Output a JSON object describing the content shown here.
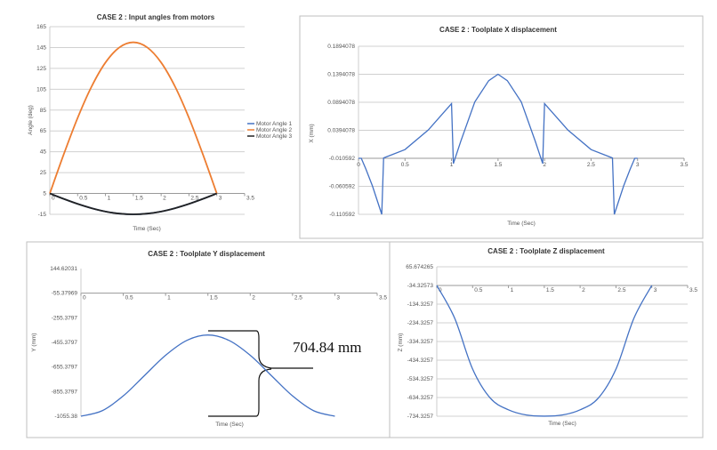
{
  "annotation": {
    "text": "704.84 mm"
  },
  "chart_data": [
    {
      "type": "line",
      "title": "CASE 2 : Input angles from motors",
      "xlabel": "Time (Sec)",
      "ylabel": "Angle (deg)",
      "xlim": [
        0,
        3.5
      ],
      "ylim": [
        -15,
        165
      ],
      "xticks": [
        0,
        0.5,
        1,
        1.5,
        2,
        2.5,
        3,
        3.5
      ],
      "yticks": [
        165,
        145,
        125,
        105,
        85,
        65,
        45,
        25,
        5,
        -15
      ],
      "xaxis_at": 5,
      "legend": "right",
      "grid": true,
      "x": [
        0,
        0.25,
        0.5,
        0.75,
        1,
        1.25,
        1.5,
        1.75,
        2,
        2.25,
        2.5,
        2.75,
        3
      ],
      "series": [
        {
          "name": "Motor Angle 1",
          "color": "#4472c4",
          "values": [
            5,
            -0.2,
            -5,
            -9.1,
            -12.3,
            -14.3,
            -15,
            -14.3,
            -12.3,
            -9.1,
            -5,
            -0.2,
            5
          ]
        },
        {
          "name": "Motor Angle 2",
          "color": "#ed7d31",
          "values": [
            5,
            42.5,
            77.5,
            107.5,
            130.6,
            145.1,
            150,
            145.1,
            130.6,
            107.5,
            77.5,
            42.5,
            5
          ]
        },
        {
          "name": "Motor Angle 3",
          "color": "#222222",
          "values": [
            5,
            -0.2,
            -5,
            -9.1,
            -12.3,
            -14.3,
            -15,
            -14.3,
            -12.3,
            -9.1,
            -5,
            -0.2,
            5
          ]
        }
      ]
    },
    {
      "type": "line",
      "title": "CASE 2 : Toolplate X displacement",
      "xlabel": "Time (Sec)",
      "ylabel": "X (mm)",
      "xlim": [
        0,
        3.5
      ],
      "ylim": [
        -0.110592,
        0.1894078
      ],
      "xticks": [
        0,
        0.5,
        1,
        1.5,
        2,
        2.5,
        3,
        3.5
      ],
      "yticks": [
        "0.1894078",
        "0.1394078",
        "0.0894078",
        "0.0394078",
        "-0.010592",
        "-0.060592",
        "-0.110592"
      ],
      "xaxis_at": -0.010592,
      "grid": true,
      "x": [
        0,
        0.03,
        0.08,
        0.15,
        0.25,
        0.27,
        0.5,
        0.75,
        1.0,
        1.02,
        1.1,
        1.25,
        1.4,
        1.5,
        1.6,
        1.75,
        1.9,
        1.98,
        2.0,
        2.25,
        2.5,
        2.73,
        2.75,
        2.85,
        2.92,
        2.97,
        3.0
      ],
      "series": [
        {
          "name": "X",
          "color": "#4472c4",
          "values": [
            -0.0106,
            -0.0106,
            -0.03,
            -0.06,
            -0.1106,
            -0.01,
            0.005,
            0.04,
            0.087,
            -0.02,
            0.02,
            0.09,
            0.128,
            0.1394,
            0.128,
            0.09,
            0.02,
            -0.02,
            0.087,
            0.04,
            0.005,
            -0.01,
            -0.1106,
            -0.06,
            -0.03,
            -0.0106,
            -0.0106
          ]
        }
      ]
    },
    {
      "type": "line",
      "title": "CASE 2 : Toolplate Y displacement",
      "xlabel": "Time (Sec)",
      "ylabel": "Y (mm)",
      "xlim": [
        0,
        3.5
      ],
      "ylim": [
        -1055.38,
        144.62031
      ],
      "xticks": [
        0,
        0.5,
        1,
        1.5,
        2,
        2.5,
        3,
        3.5
      ],
      "yticks": [
        "144.62031",
        "-55.37969",
        "-255.3797",
        "-455.3797",
        "-655.3797",
        "-855.3797",
        "-1055.38"
      ],
      "xaxis_at": -55.37969,
      "grid": false,
      "x": [
        0,
        0.25,
        0.5,
        0.75,
        1,
        1.25,
        1.5,
        1.75,
        2,
        2.25,
        2.5,
        2.75,
        3
      ],
      "series": [
        {
          "name": "Y",
          "color": "#4472c4",
          "values": [
            -1055.4,
            -1011.2,
            -890.4,
            -725.4,
            -560.4,
            -439.6,
            -395.4,
            -439.6,
            -560.4,
            -725.4,
            -890.4,
            -1011.2,
            -1055.4
          ]
        }
      ]
    },
    {
      "type": "line",
      "title": "CASE 2 : Toolplate Z displacement",
      "xlabel": "Time (Sec)",
      "ylabel": "Z (mm)",
      "xlim": [
        0,
        3.5
      ],
      "ylim": [
        -734.3257,
        65.674265
      ],
      "xticks": [
        0,
        0.5,
        1,
        1.5,
        2,
        2.5,
        3,
        3.5
      ],
      "yticks": [
        "65.674265",
        "-34.32573",
        "-134.3257",
        "-234.3257",
        "-334.3257",
        "-434.3257",
        "-534.3257",
        "-634.3257",
        "-734.3257"
      ],
      "xaxis_at": -34.32573,
      "grid": true,
      "x": [
        0,
        0.25,
        0.5,
        0.75,
        1,
        1.25,
        1.5,
        1.75,
        2,
        2.25,
        2.5,
        2.75,
        3
      ],
      "series": [
        {
          "name": "Z",
          "color": "#4472c4",
          "values": [
            -34.3,
            -210,
            -482,
            -639,
            -700,
            -728,
            -734,
            -728,
            -700,
            -639,
            -482,
            -210,
            -34.3
          ]
        }
      ]
    }
  ]
}
